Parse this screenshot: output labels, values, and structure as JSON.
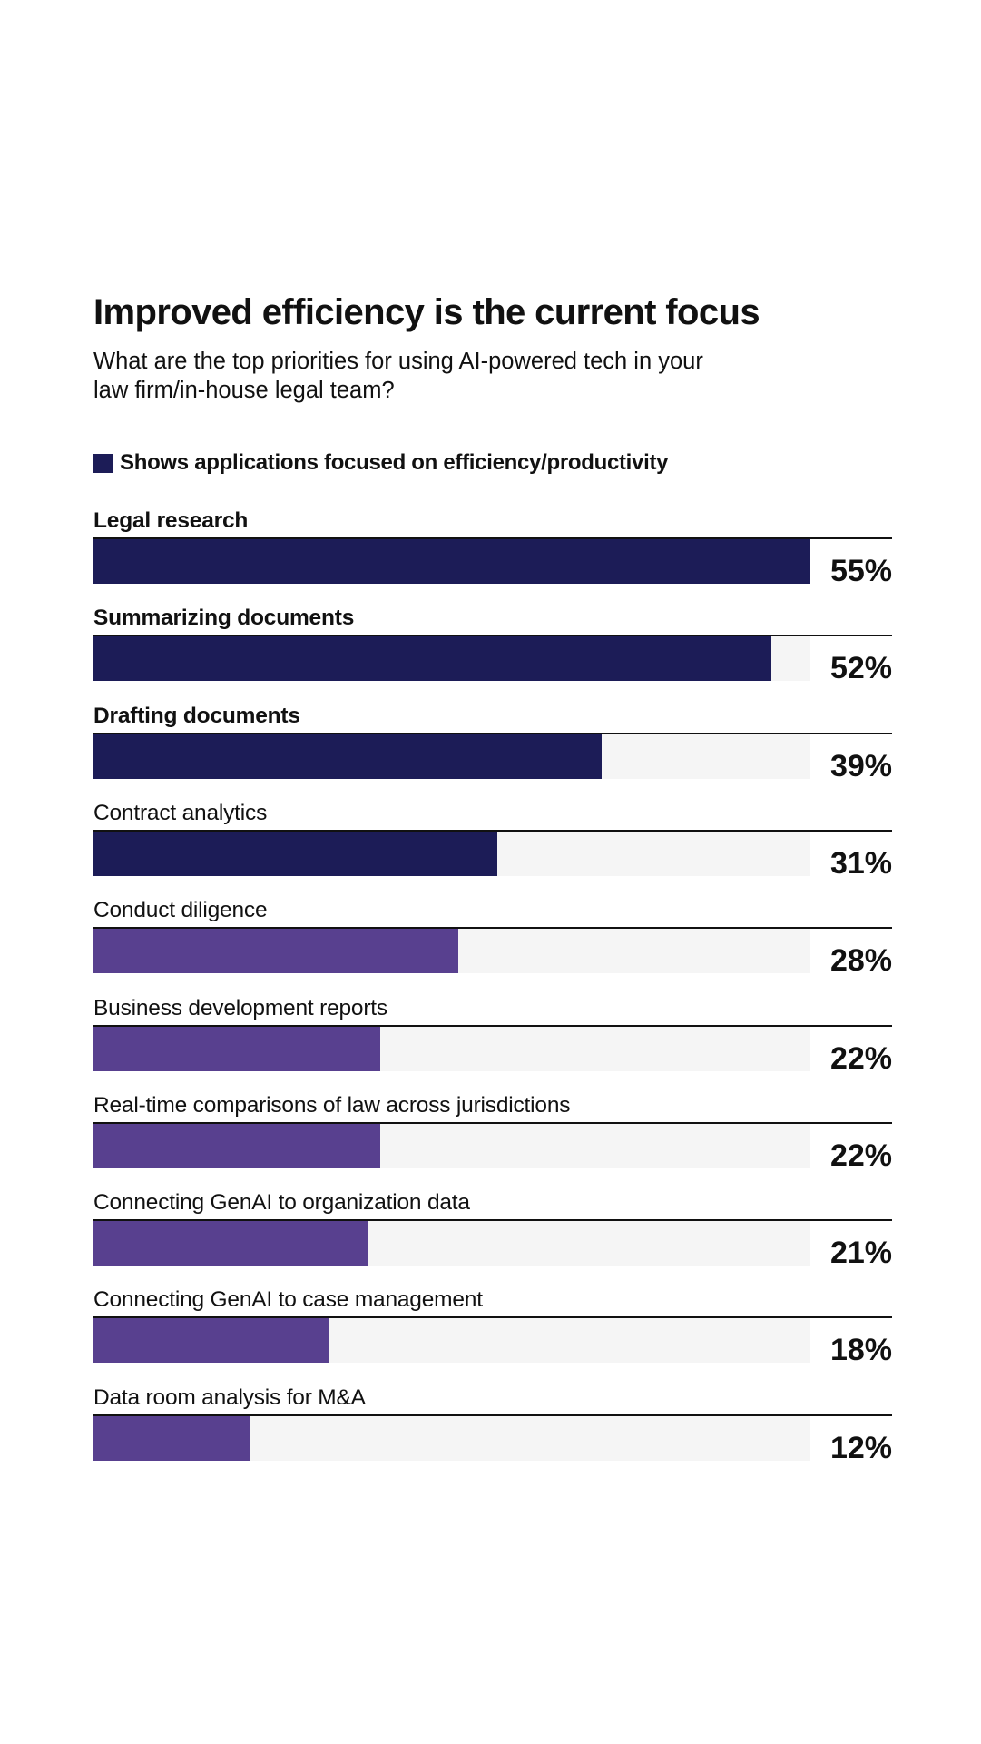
{
  "chart_data": {
    "type": "bar",
    "orientation": "horizontal",
    "title": "Improved efficiency is the current focus",
    "subtitle": "What are the top priorities for using AI-powered tech in your law firm/in-house legal team?",
    "legend": {
      "label": "Shows applications focused on efficiency/productivity",
      "color": "#1c1c57"
    },
    "colors": {
      "efficiency": "#1c1c57",
      "other": "#58408f",
      "track": "#f5f5f5"
    },
    "xlim": [
      0,
      55
    ],
    "grid": false,
    "categories": [
      "Legal research",
      "Summarizing documents",
      "Drafting documents",
      "Contract analytics",
      "Conduct diligence",
      "Business development reports",
      "Real-time comparisons of law across jurisdictions",
      "Connecting GenAI to organization data",
      "Connecting GenAI to case management",
      "Data room analysis for M&A"
    ],
    "values": [
      55,
      52,
      39,
      31,
      28,
      22,
      22,
      21,
      18,
      12
    ],
    "value_labels": [
      "55%",
      "52%",
      "39%",
      "31%",
      "28%",
      "22%",
      "22%",
      "21%",
      "18%",
      "12%"
    ],
    "efficiency_focused": [
      true,
      true,
      true,
      true,
      false,
      false,
      false,
      false,
      false,
      false
    ],
    "bold_labels": [
      true,
      true,
      true,
      false,
      false,
      false,
      false,
      false,
      false,
      false
    ]
  }
}
